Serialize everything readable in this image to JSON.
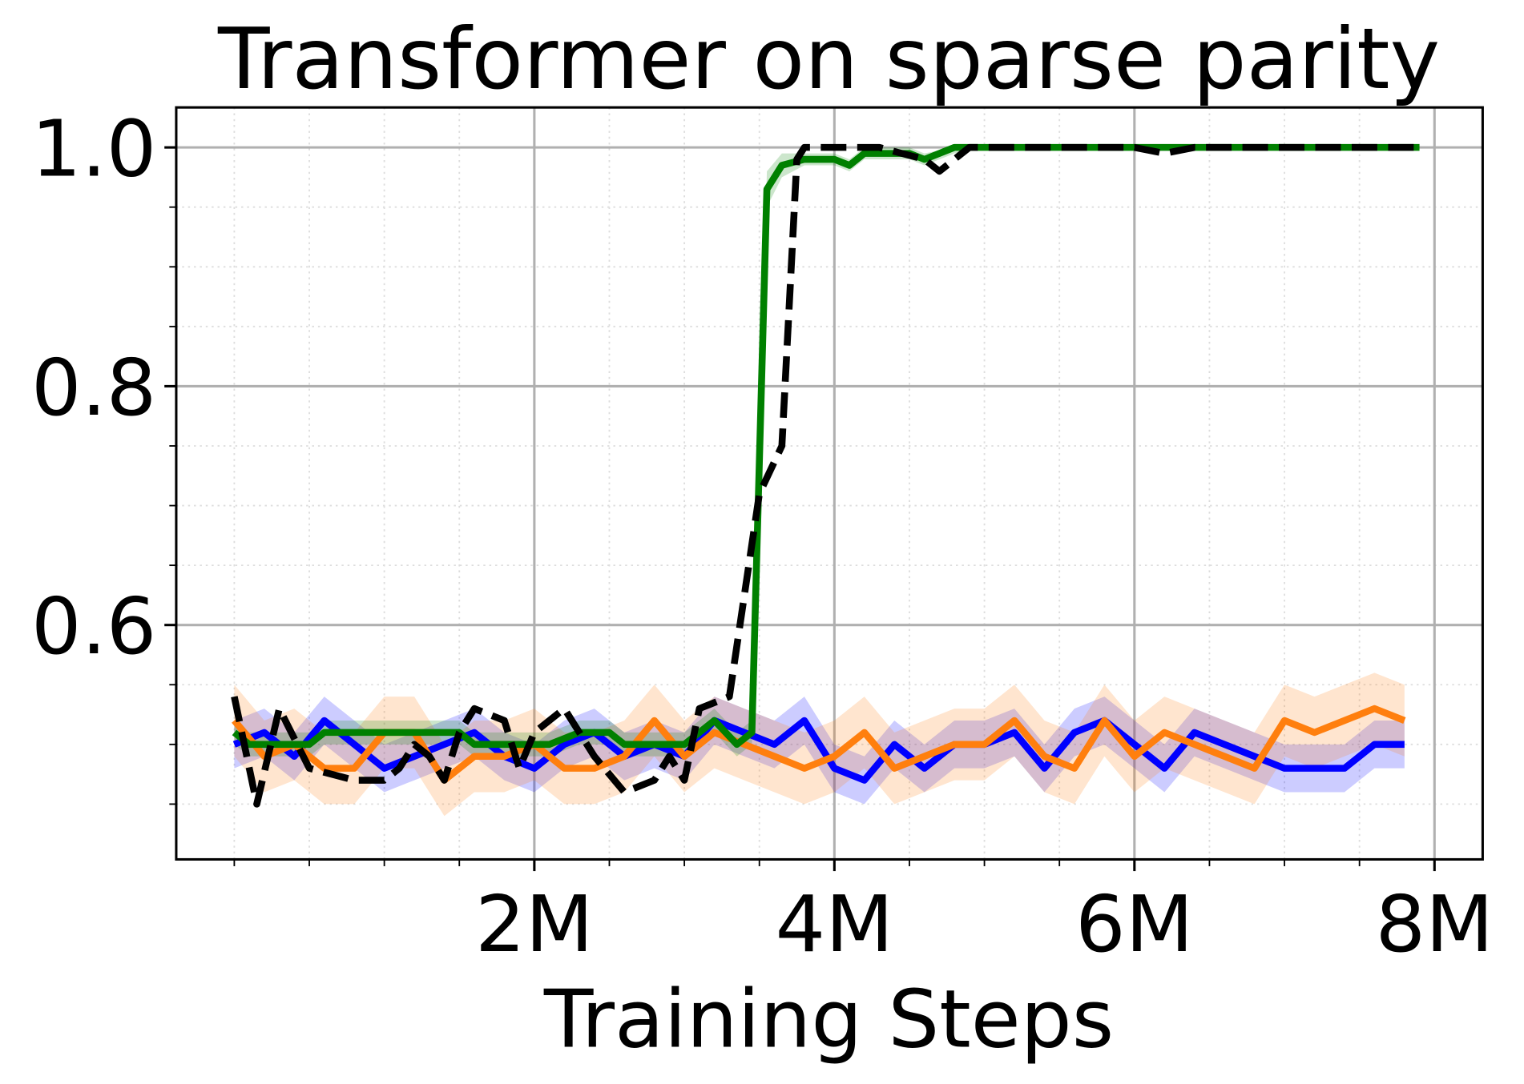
{
  "chart_data": {
    "type": "line",
    "title": "Transformer on sparse parity",
    "x_label": "Training Steps",
    "xlim": [
      -387000,
      8321000
    ],
    "ylim": [
      0.4037,
      1.0335
    ],
    "xticks": [
      {
        "value": 2000000,
        "label": "2M"
      },
      {
        "value": 4000000,
        "label": "4M"
      },
      {
        "value": 6000000,
        "label": "6M"
      },
      {
        "value": 8000000,
        "label": "8M"
      }
    ],
    "yticks": [
      0.6,
      0.8,
      {
        "value": 1,
        "label": "1.0"
      }
    ],
    "xminorticks": [
      0,
      500000,
      1000000,
      1500000,
      2500000,
      3000000,
      3500000,
      4500000,
      5000000,
      5500000,
      6500000,
      7000000,
      7500000
    ],
    "yminorticks": [
      0.45,
      0.5,
      0.55,
      0.65,
      0.7,
      0.75,
      0.85,
      0.9,
      0.95
    ],
    "grid": true,
    "minor_grid": true,
    "series": [
      {
        "color": "#0000ff",
        "band_opacity": 0.2,
        "x": [
          0,
          200000,
          400000,
          600000,
          800000,
          1000000,
          1200000,
          1400000,
          1600000,
          1800000,
          2000000,
          2200000,
          2400000,
          2600000,
          2800000,
          3000000,
          3200000,
          3400000,
          3600000,
          3800000,
          4000000,
          4200000,
          4400000,
          4600000,
          4800000,
          5000000,
          5200000,
          5400000,
          5600000,
          5800000,
          6000000,
          6200000,
          6400000,
          6600000,
          6800000,
          7000000,
          7200000,
          7400000,
          7600000,
          7800000
        ],
        "values": [
          0.5,
          0.51,
          0.49,
          0.52,
          0.5,
          0.48,
          0.49,
          0.5,
          0.51,
          0.49,
          0.48,
          0.5,
          0.51,
          0.49,
          0.5,
          0.49,
          0.52,
          0.51,
          0.5,
          0.52,
          0.48,
          0.47,
          0.5,
          0.48,
          0.5,
          0.5,
          0.51,
          0.48,
          0.51,
          0.52,
          0.5,
          0.48,
          0.51,
          0.5,
          0.49,
          0.48,
          0.48,
          0.48,
          0.5,
          0.5
        ],
        "band_low": [
          0.48,
          0.49,
          0.47,
          0.5,
          0.48,
          0.46,
          0.47,
          0.48,
          0.49,
          0.47,
          0.46,
          0.48,
          0.49,
          0.47,
          0.48,
          0.47,
          0.5,
          0.49,
          0.48,
          0.5,
          0.46,
          0.45,
          0.48,
          0.46,
          0.48,
          0.48,
          0.49,
          0.46,
          0.49,
          0.5,
          0.48,
          0.46,
          0.49,
          0.48,
          0.47,
          0.46,
          0.46,
          0.46,
          0.48,
          0.48
        ],
        "band_high": [
          0.52,
          0.53,
          0.51,
          0.54,
          0.52,
          0.5,
          0.51,
          0.52,
          0.53,
          0.51,
          0.5,
          0.52,
          0.53,
          0.51,
          0.52,
          0.51,
          0.54,
          0.53,
          0.52,
          0.54,
          0.5,
          0.49,
          0.52,
          0.5,
          0.52,
          0.52,
          0.53,
          0.5,
          0.53,
          0.54,
          0.52,
          0.5,
          0.53,
          0.52,
          0.51,
          0.5,
          0.5,
          0.5,
          0.52,
          0.52
        ]
      },
      {
        "color": "#ff7f0e",
        "band_opacity": 0.2,
        "x": [
          0,
          200000,
          400000,
          600000,
          800000,
          1000000,
          1200000,
          1400000,
          1600000,
          1800000,
          2000000,
          2200000,
          2400000,
          2600000,
          2800000,
          3000000,
          3200000,
          3400000,
          3600000,
          3800000,
          4000000,
          4200000,
          4400000,
          4600000,
          4800000,
          5000000,
          5200000,
          5400000,
          5600000,
          5800000,
          6000000,
          6200000,
          6400000,
          6600000,
          6800000,
          7000000,
          7200000,
          7400000,
          7600000,
          7800000
        ],
        "values": [
          0.52,
          0.49,
          0.5,
          0.48,
          0.48,
          0.51,
          0.51,
          0.47,
          0.49,
          0.49,
          0.5,
          0.48,
          0.48,
          0.49,
          0.52,
          0.49,
          0.51,
          0.5,
          0.49,
          0.48,
          0.49,
          0.51,
          0.48,
          0.49,
          0.5,
          0.5,
          0.52,
          0.49,
          0.48,
          0.52,
          0.49,
          0.51,
          0.5,
          0.49,
          0.48,
          0.52,
          0.51,
          0.52,
          0.53,
          0.52
        ],
        "band_low": [
          0.49,
          0.46,
          0.47,
          0.45,
          0.45,
          0.48,
          0.48,
          0.44,
          0.46,
          0.46,
          0.47,
          0.45,
          0.45,
          0.46,
          0.49,
          0.46,
          0.48,
          0.47,
          0.46,
          0.45,
          0.46,
          0.48,
          0.45,
          0.46,
          0.47,
          0.47,
          0.49,
          0.46,
          0.45,
          0.49,
          0.46,
          0.48,
          0.47,
          0.46,
          0.45,
          0.49,
          0.48,
          0.49,
          0.5,
          0.49
        ],
        "band_high": [
          0.55,
          0.52,
          0.53,
          0.51,
          0.51,
          0.54,
          0.54,
          0.5,
          0.52,
          0.52,
          0.53,
          0.51,
          0.51,
          0.52,
          0.55,
          0.52,
          0.54,
          0.53,
          0.52,
          0.51,
          0.52,
          0.54,
          0.51,
          0.52,
          0.53,
          0.53,
          0.55,
          0.52,
          0.51,
          0.55,
          0.52,
          0.54,
          0.53,
          0.52,
          0.51,
          0.55,
          0.54,
          0.55,
          0.56,
          0.55
        ]
      },
      {
        "color": "#008000",
        "band_opacity": 0.2,
        "x": [
          0,
          100000,
          500000,
          600000,
          1500000,
          1600000,
          2100000,
          2300000,
          2500000,
          2600000,
          3000000,
          3200000,
          3350000,
          3450000,
          3550000,
          3650000,
          3800000,
          4000000,
          4100000,
          4200000,
          4500000,
          4600000,
          4800000,
          5000000,
          7900000
        ],
        "values": [
          0.51,
          0.5,
          0.5,
          0.51,
          0.51,
          0.5,
          0.5,
          0.51,
          0.51,
          0.5,
          0.5,
          0.52,
          0.5,
          0.51,
          0.965,
          0.985,
          0.99,
          0.99,
          0.985,
          0.995,
          0.995,
          0.99,
          1.0,
          1.0,
          1.0
        ],
        "band_low": [
          0.5,
          0.49,
          0.49,
          0.5,
          0.5,
          0.49,
          0.49,
          0.5,
          0.5,
          0.49,
          0.49,
          0.51,
          0.49,
          0.5,
          0.95,
          0.975,
          0.985,
          0.985,
          0.98,
          0.99,
          0.99,
          0.985,
          0.995,
          1.0,
          1.0
        ],
        "band_high": [
          0.52,
          0.51,
          0.51,
          0.52,
          0.52,
          0.51,
          0.51,
          0.52,
          0.52,
          0.51,
          0.51,
          0.53,
          0.51,
          0.52,
          0.98,
          0.995,
          0.995,
          0.995,
          0.99,
          1.0,
          1.0,
          0.995,
          1.0,
          1.0,
          1.0
        ]
      },
      {
        "color": "#000000",
        "dashed": true,
        "x": [
          0,
          150000,
          300000,
          500000,
          800000,
          1000000,
          1100000,
          1200000,
          1300000,
          1400000,
          1500000,
          1600000,
          1800000,
          1900000,
          2000000,
          2200000,
          2400000,
          2600000,
          2800000,
          2900000,
          3000000,
          3100000,
          3300000,
          3500000,
          3650000,
          3750000,
          3800000,
          4300000,
          4600000,
          4700000,
          4800000,
          4900000,
          6000000,
          6200000,
          6400000,
          7900000
        ],
        "values": [
          0.54,
          0.45,
          0.53,
          0.48,
          0.47,
          0.47,
          0.48,
          0.5,
          0.49,
          0.47,
          0.51,
          0.53,
          0.52,
          0.48,
          0.51,
          0.53,
          0.49,
          0.46,
          0.47,
          0.49,
          0.47,
          0.53,
          0.54,
          0.71,
          0.75,
          0.99,
          1.0,
          1.0,
          0.99,
          0.98,
          0.99,
          1.0,
          1.0,
          0.995,
          1.0,
          1.0
        ]
      }
    ]
  }
}
